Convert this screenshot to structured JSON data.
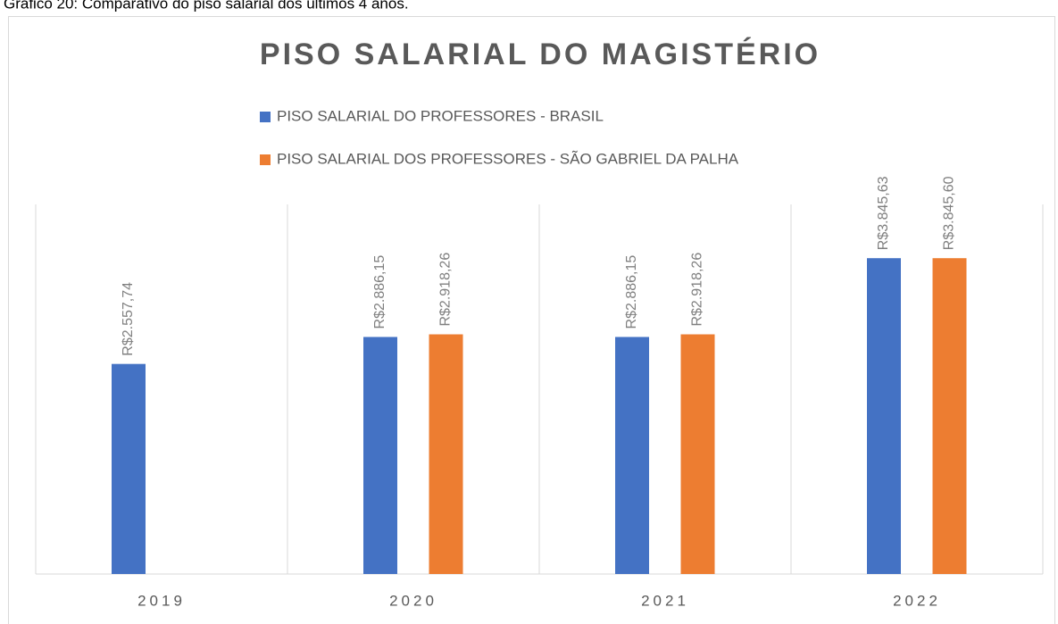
{
  "caption": "Gráfico 20: Comparativo do piso salarial dos últimos 4 anos.",
  "chart_data": {
    "type": "bar",
    "title": "PISO SALARIAL DO MAGISTÉRIO",
    "categories": [
      "2019",
      "2020",
      "2021",
      "2022"
    ],
    "series": [
      {
        "name": "PISO SALARIAL DO PROFESSORES -  BRASIL",
        "color": "#4472c4",
        "values": [
          2557.74,
          2886.15,
          2886.15,
          3845.63
        ],
        "value_labels": [
          "R$2.557,74",
          "R$2.886,15",
          "R$2.886,15",
          "R$3.845,63"
        ]
      },
      {
        "name": "PISO SALARIAL DOS PROFESSORES - SÃO GABRIEL DA PALHA",
        "color": "#ed7d31",
        "values": [
          null,
          2918.26,
          2918.26,
          3845.6
        ],
        "value_labels": [
          null,
          "R$2.918,26",
          "R$2.918,26",
          "R$3.845,60"
        ]
      }
    ],
    "ylim": [
      0,
      4500
    ]
  }
}
